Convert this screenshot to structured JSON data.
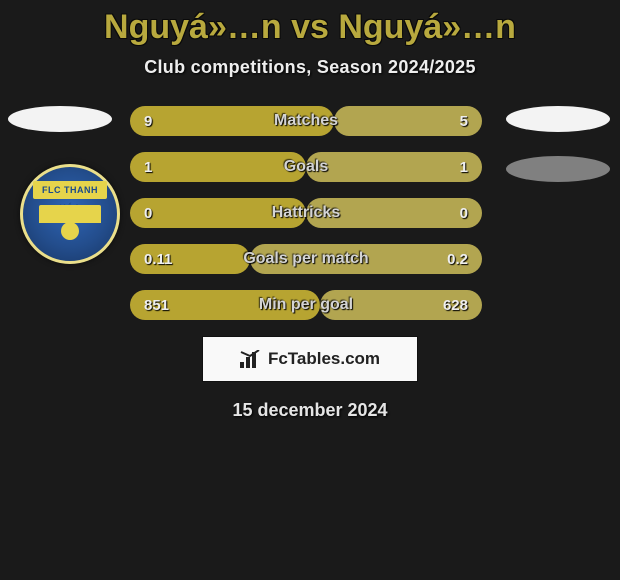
{
  "title": "Nguyá»…n vs Nguyá»…n",
  "subtitle": "Club competitions, Season 2024/2025",
  "date": "15 december 2024",
  "brand": "FcTables.com",
  "badge_text": "FLC THANH HÓA",
  "colors": {
    "left_bar": "#b7a431",
    "right_bar": "#b2a550",
    "row_gap_bg": "#1a1a1a"
  },
  "stats": [
    {
      "label": "Matches",
      "left_val": "9",
      "right_val": "5",
      "left_pct": 0.58,
      "right_pct": 0.42
    },
    {
      "label": "Goals",
      "left_val": "1",
      "right_val": "1",
      "left_pct": 0.5,
      "right_pct": 0.5
    },
    {
      "label": "Hattricks",
      "left_val": "0",
      "right_val": "0",
      "left_pct": 0.5,
      "right_pct": 0.5
    },
    {
      "label": "Goals per match",
      "left_val": "0.11",
      "right_val": "0.2",
      "left_pct": 0.34,
      "right_pct": 0.66
    },
    {
      "label": "Min per goal",
      "left_val": "851",
      "right_val": "628",
      "left_pct": 0.54,
      "right_pct": 0.46
    }
  ]
}
